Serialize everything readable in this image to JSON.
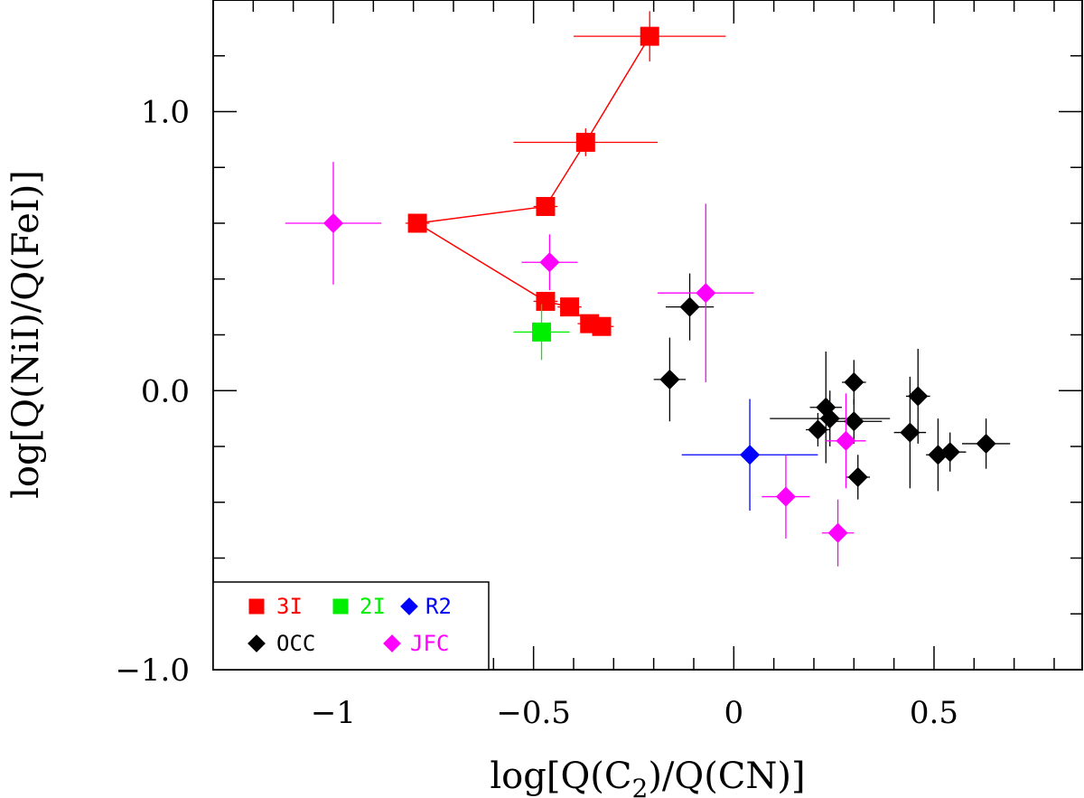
{
  "chart_data": {
    "type": "scatter",
    "title": "",
    "xlabel": "log[Q(C2)/Q(CN)]",
    "ylabel": "log[Q(NiI)/Q(FeI)]",
    "xlim": [
      -1.3,
      0.87
    ],
    "ylim": [
      -1.0,
      1.4
    ],
    "x_major_ticks": [
      -1,
      -0.5,
      0,
      0.5
    ],
    "x_minor_step": 0.1,
    "y_major_ticks": [
      -1.0,
      0.0,
      1.0
    ],
    "y_minor_step": 0.2,
    "x_tick_labels": [
      "−1",
      "−0.5",
      "0",
      "0.5"
    ],
    "y_tick_labels": [
      "−1.0",
      "0.0",
      "1.0"
    ],
    "grid": false,
    "legend_position": "bottom-left",
    "series": [
      {
        "name": "3I",
        "color": "#ff0000",
        "marker": "square",
        "connected": true,
        "points": [
          {
            "x": -0.21,
            "y": 1.27,
            "xerr": 0.19,
            "yerr": 0.09
          },
          {
            "x": -0.37,
            "y": 0.89,
            "xerr": 0.18,
            "yerr": 0.05
          },
          {
            "x": -0.47,
            "y": 0.66,
            "xerr": 0.03,
            "yerr": 0.03
          },
          {
            "x": -0.79,
            "y": 0.6,
            "xerr": 0.03,
            "yerr": 0.02
          },
          {
            "x": -0.47,
            "y": 0.32,
            "xerr": 0.03,
            "yerr": 0.02
          },
          {
            "x": -0.41,
            "y": 0.3,
            "xerr": 0.03,
            "yerr": 0.02
          },
          {
            "x": -0.36,
            "y": 0.24,
            "xerr": 0.03,
            "yerr": 0.02
          },
          {
            "x": -0.33,
            "y": 0.23,
            "xerr": 0.03,
            "yerr": 0.02
          }
        ]
      },
      {
        "name": "2I",
        "color": "#00ee00",
        "marker": "square",
        "connected": false,
        "points": [
          {
            "x": -0.48,
            "y": 0.21,
            "xerr": 0.07,
            "yerr": 0.1
          }
        ]
      },
      {
        "name": "R2",
        "color": "#0000ff",
        "marker": "diamond",
        "connected": false,
        "points": [
          {
            "x": 0.04,
            "y": -0.23,
            "xerr": 0.17,
            "yerr": 0.2
          }
        ]
      },
      {
        "name": "OCC",
        "color": "#000000",
        "marker": "diamond",
        "connected": false,
        "points": [
          {
            "x": -0.16,
            "y": 0.04,
            "xerr": 0.04,
            "yerr": 0.15
          },
          {
            "x": -0.11,
            "y": 0.3,
            "xerr": 0.06,
            "yerr": 0.12
          },
          {
            "x": 0.21,
            "y": -0.14,
            "xerr": 0.03,
            "yerr": 0.06
          },
          {
            "x": 0.23,
            "y": -0.06,
            "xerr": 0.04,
            "yerr": 0.2
          },
          {
            "x": 0.24,
            "y": -0.1,
            "xerr": 0.15,
            "yerr": 0.1
          },
          {
            "x": 0.3,
            "y": 0.03,
            "xerr": 0.03,
            "yerr": 0.08
          },
          {
            "x": 0.3,
            "y": -0.11,
            "xerr": 0.07,
            "yerr": 0.08
          },
          {
            "x": 0.31,
            "y": -0.31,
            "xerr": 0.03,
            "yerr": 0.08
          },
          {
            "x": 0.46,
            "y": -0.02,
            "xerr": 0.03,
            "yerr": 0.17
          },
          {
            "x": 0.44,
            "y": -0.15,
            "xerr": 0.04,
            "yerr": 0.2
          },
          {
            "x": 0.51,
            "y": -0.23,
            "xerr": 0.03,
            "yerr": 0.13
          },
          {
            "x": 0.54,
            "y": -0.22,
            "xerr": 0.04,
            "yerr": 0.07
          },
          {
            "x": 0.63,
            "y": -0.19,
            "xerr": 0.06,
            "yerr": 0.09
          }
        ]
      },
      {
        "name": "JFC",
        "color": "#ff00ff",
        "marker": "diamond",
        "connected": false,
        "points": [
          {
            "x": -1.0,
            "y": 0.6,
            "xerr": 0.12,
            "yerr": 0.22
          },
          {
            "x": -0.46,
            "y": 0.46,
            "xerr": 0.07,
            "yerr": 0.1
          },
          {
            "x": -0.07,
            "y": 0.35,
            "xerr": 0.12,
            "yerr": 0.32
          },
          {
            "x": 0.13,
            "y": -0.38,
            "xerr": 0.06,
            "yerr": 0.15
          },
          {
            "x": 0.28,
            "y": -0.18,
            "xerr": 0.05,
            "yerr": 0.17
          },
          {
            "x": 0.26,
            "y": -0.51,
            "xerr": 0.04,
            "yerr": 0.12
          }
        ]
      }
    ]
  }
}
